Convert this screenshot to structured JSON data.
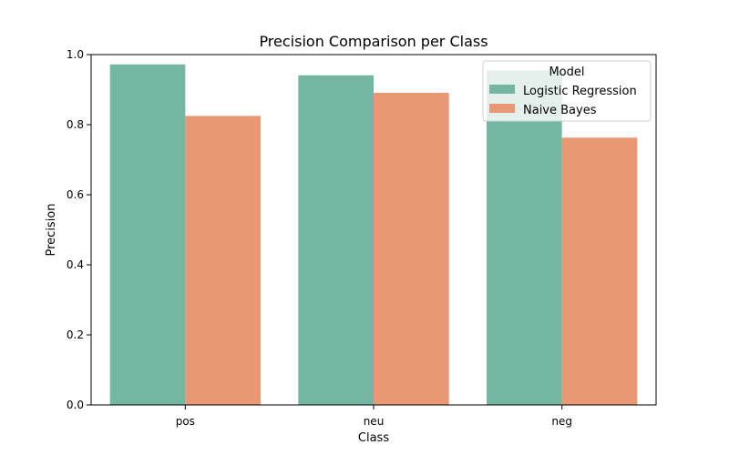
{
  "chart_data": {
    "type": "bar",
    "title": "Precision Comparison per Class",
    "xlabel": "Class",
    "ylabel": "Precision",
    "categories": [
      "pos",
      "neu",
      "neg"
    ],
    "series": [
      {
        "name": "Logistic Regression",
        "values": [
          0.972,
          0.941,
          0.955
        ],
        "color": "#74b6a1"
      },
      {
        "name": "Naive Bayes",
        "values": [
          0.825,
          0.891,
          0.763
        ],
        "color": "#e89874"
      }
    ],
    "ylim": [
      0,
      1.0
    ],
    "yticks": [
      "0.0",
      "0.2",
      "0.4",
      "0.6",
      "0.8",
      "1.0"
    ],
    "legend": {
      "title": "Model",
      "placement": "top-right"
    },
    "grid": false
  }
}
